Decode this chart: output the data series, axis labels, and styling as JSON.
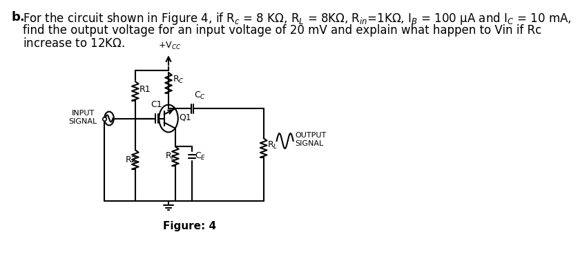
{
  "title_bold": "b.",
  "line1": "For the circuit shown in Figure 4, if R$_c$ = 8 K$\\Omega$, R$_L$ = 8K$\\Omega$, R$_{in}$=1K$\\Omega$, I$_B$ = 100 μA and I$_C$ = 10 mA,",
  "line2": "find the output voltage for an input voltage of 20 mV and explain what happen to Vin if Rc",
  "line3": "increase to 12K$\\Omega$.",
  "figure_label": "Figure: 4",
  "bg_color": "#ffffff",
  "line_color": "#000000",
  "vcc_label": "+V$_{CC}$",
  "rc_label": "R$_C$",
  "cc_label": "C$_C$",
  "r1_label": "R1",
  "r2_label": "R2",
  "c1_label": "C1",
  "q1_label": "Q1",
  "rl_label": "R$_L$",
  "re_label": "R$_E$",
  "ce_label": "C$_E$",
  "input_label": "INPUT\nSIGNAL",
  "output_label": "OUTPUT\nSIGNAL"
}
